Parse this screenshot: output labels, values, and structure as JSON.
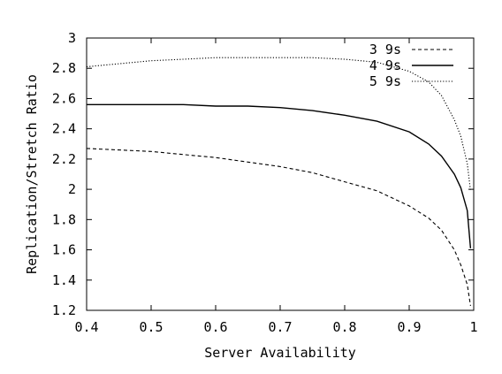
{
  "chart_data": {
    "type": "line",
    "title": "",
    "xlabel": "Server Availability",
    "ylabel": "Replication/Stretch Ratio",
    "xlim": [
      0.4,
      1.0
    ],
    "ylim": [
      1.2,
      3.0
    ],
    "xticks": [
      "0.4",
      "0.5",
      "0.6",
      "0.7",
      "0.8",
      "0.9",
      "1"
    ],
    "yticks": [
      "1.2",
      "1.4",
      "1.6",
      "1.8",
      "2",
      "2.2",
      "2.4",
      "2.6",
      "2.8",
      "3"
    ],
    "grid": false,
    "legend_position": "top-right",
    "series": [
      {
        "name": "3 9s",
        "style": "dashed",
        "color": "#000000",
        "x": [
          0.4,
          0.45,
          0.5,
          0.55,
          0.6,
          0.65,
          0.7,
          0.75,
          0.8,
          0.85,
          0.9,
          0.93,
          0.95,
          0.97,
          0.98,
          0.99,
          0.995
        ],
        "y": [
          2.27,
          2.26,
          2.25,
          2.23,
          2.21,
          2.18,
          2.15,
          2.11,
          2.05,
          1.99,
          1.89,
          1.81,
          1.73,
          1.6,
          1.5,
          1.37,
          1.23
        ]
      },
      {
        "name": "4 9s",
        "style": "solid",
        "color": "#000000",
        "x": [
          0.4,
          0.45,
          0.5,
          0.55,
          0.6,
          0.65,
          0.7,
          0.75,
          0.8,
          0.85,
          0.9,
          0.93,
          0.95,
          0.97,
          0.98,
          0.99,
          0.995
        ],
        "y": [
          2.56,
          2.56,
          2.56,
          2.56,
          2.55,
          2.55,
          2.54,
          2.52,
          2.49,
          2.45,
          2.38,
          2.3,
          2.22,
          2.1,
          2.01,
          1.86,
          1.61
        ]
      },
      {
        "name": "5 9s",
        "style": "dotted",
        "color": "#000000",
        "x": [
          0.4,
          0.45,
          0.5,
          0.55,
          0.6,
          0.65,
          0.7,
          0.75,
          0.8,
          0.85,
          0.9,
          0.93,
          0.95,
          0.97,
          0.98,
          0.99,
          0.995
        ],
        "y": [
          2.81,
          2.83,
          2.85,
          2.86,
          2.87,
          2.87,
          2.87,
          2.87,
          2.86,
          2.84,
          2.78,
          2.71,
          2.62,
          2.46,
          2.35,
          2.17,
          1.99
        ]
      }
    ]
  }
}
